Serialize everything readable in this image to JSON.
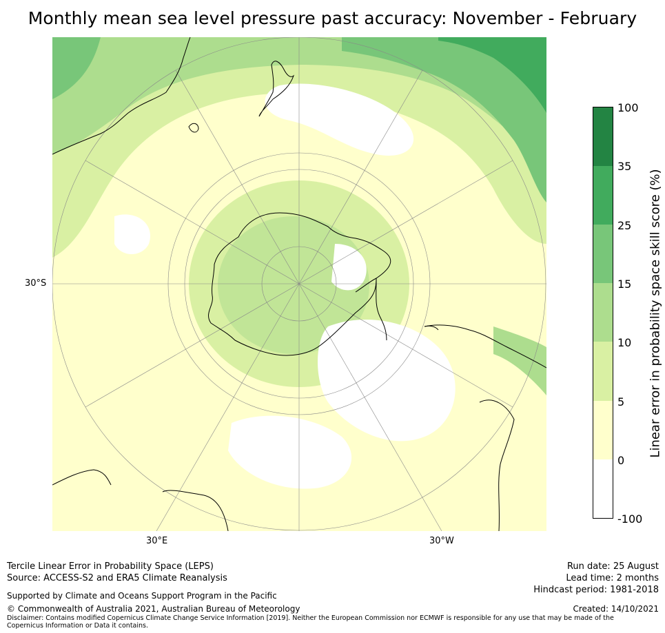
{
  "title": "Monthly mean sea level pressure past accuracy: November - February",
  "map": {
    "projection": "south-polar-stereographic",
    "lat_label": "30°S",
    "lon_labels": [
      "30°E",
      "30°W"
    ],
    "colors": {
      "band_neg100_0": "#ffffff",
      "band_0_5": "#ffffcc",
      "band_5_10": "#d9f0a3",
      "band_10_15": "#addd8e",
      "band_15_25": "#78c679",
      "band_25_35": "#41ab5d",
      "band_35_100": "#238443",
      "coastline": "#000000",
      "graticule": "#888888"
    }
  },
  "colorbar": {
    "label": "Linear error in probability space skill score (%)",
    "ticks": [
      "100",
      "35",
      "25",
      "15",
      "10",
      "5",
      "0",
      "-100"
    ],
    "bounds": [
      -100,
      0,
      5,
      10,
      15,
      25,
      35,
      100
    ],
    "colors": [
      "#ffffff",
      "#ffffcc",
      "#d9f0a3",
      "#addd8e",
      "#78c679",
      "#41ab5d",
      "#238443"
    ]
  },
  "footer": {
    "method": "Tercile Linear Error in Probability Space (LEPS)",
    "source": "Source: ACCESS-S2 and ERA5 Climate Reanalysis",
    "support": "Supported by Climate and Oceans Support Program in the Pacific",
    "copyright": "© Commonwealth of Australia 2021, Australian Bureau of Meteorology",
    "disclaimer": "Disclaimer: Contains modified Copernicus Climate Change Service Information [2019]. Neither the European Commission nor ECMWF is responsible for any use that may be made of the Copernicus Information or Data it contains.",
    "run_date": "Run date: 25 August",
    "lead_time": "Lead time: 2 months",
    "hindcast": "Hindcast period: 1981-2018",
    "created": "Created: 14/10/2021"
  }
}
